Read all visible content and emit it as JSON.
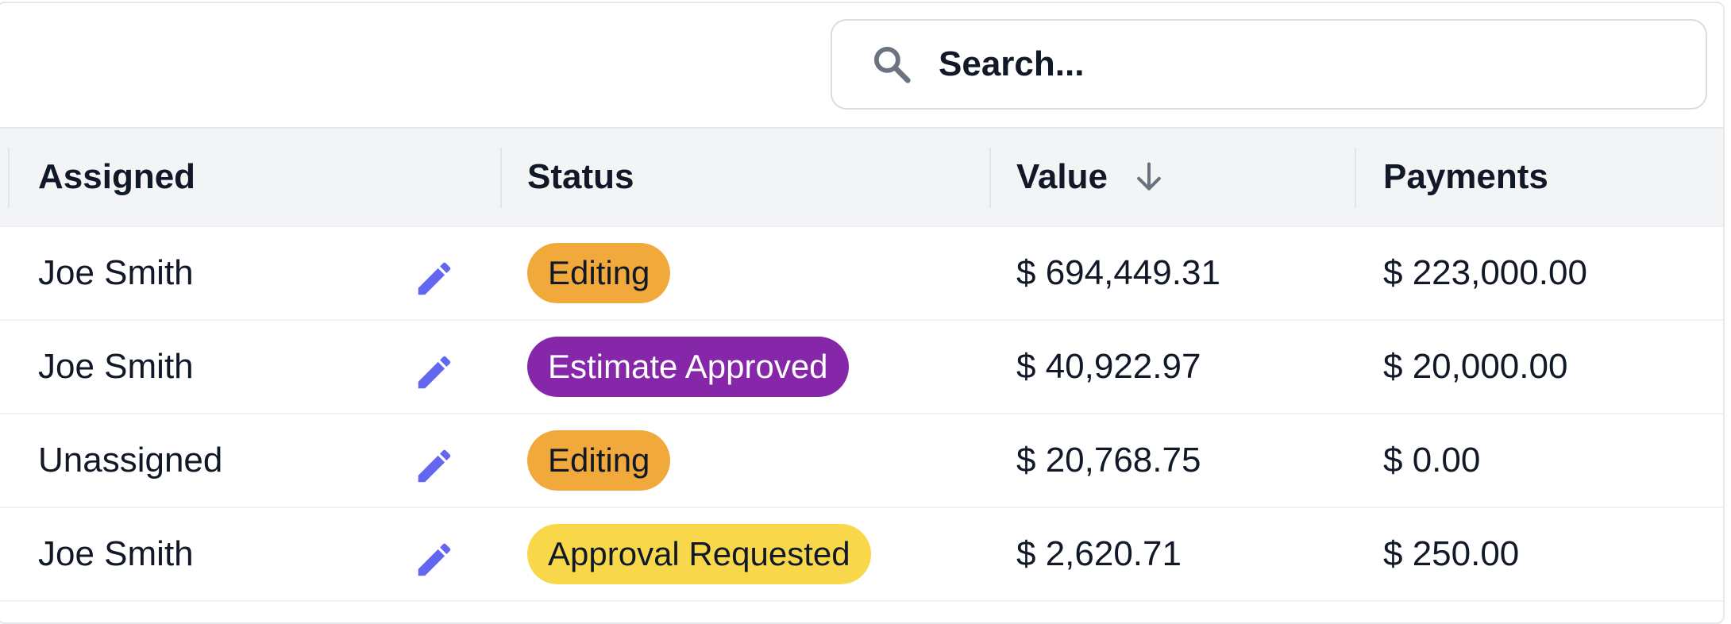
{
  "search": {
    "placeholder": "Search..."
  },
  "table": {
    "headers": {
      "assigned": "Assigned",
      "status": "Status",
      "value": "Value",
      "payments": "Payments"
    },
    "sort": {
      "column": "value",
      "direction": "descending",
      "icon": "arrow-down-icon"
    },
    "rows": [
      {
        "assigned": "Joe Smith",
        "status": "Editing",
        "value": "$ 694,449.31",
        "payments": "$ 223,000.00"
      },
      {
        "assigned": "Joe Smith",
        "status": "Estimate Approved",
        "value": "$ 40,922.97",
        "payments": "$ 20,000.00"
      },
      {
        "assigned": "Unassigned",
        "status": "Editing",
        "value": "$ 20,768.75",
        "payments": "$ 0.00"
      },
      {
        "assigned": "Joe Smith",
        "status": "Approval Requested",
        "value": "$ 2,620.71",
        "payments": "$ 250.00"
      }
    ]
  },
  "status_colors": {
    "Editing": {
      "bg": "#f1a93b",
      "fg": "#111827"
    },
    "Estimate Approved": {
      "bg": "#8626a8",
      "fg": "#ffffff"
    },
    "Approval Requested": {
      "bg": "#f8d84a",
      "fg": "#111827"
    }
  },
  "colors": {
    "accent": "#6366f1",
    "header_bg": "#f3f4f6",
    "icon_gray": "#6b7280"
  }
}
